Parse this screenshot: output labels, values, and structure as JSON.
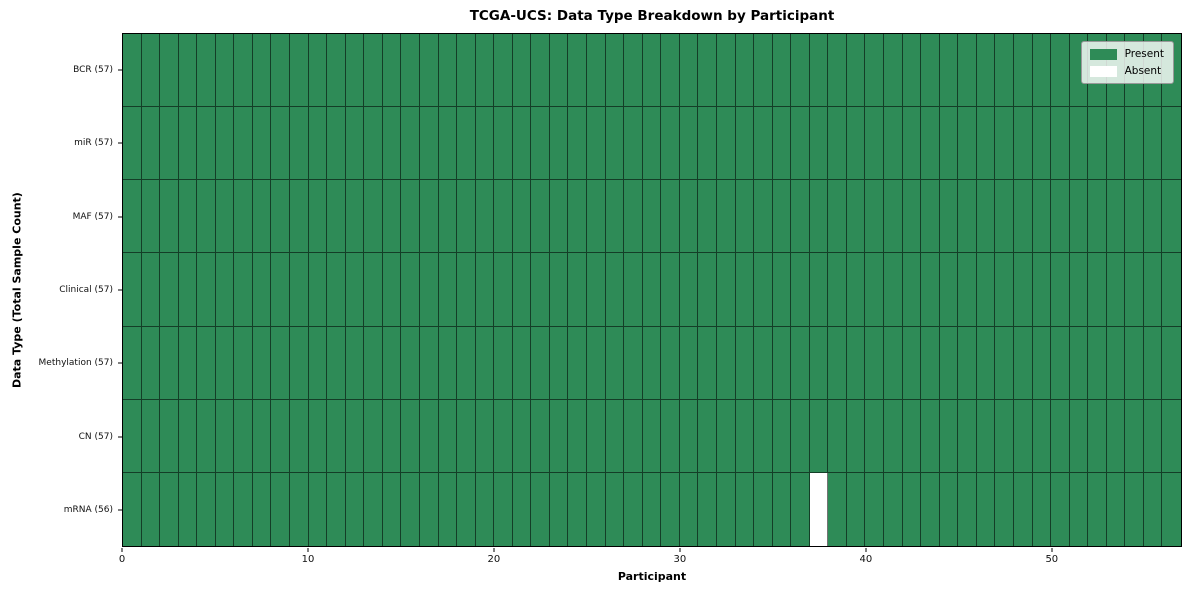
{
  "chart_data": {
    "type": "heatmap",
    "title": "TCGA-UCS: Data Type Breakdown by Participant",
    "xlabel": "Participant",
    "ylabel": "Data Type (Total Sample Count)",
    "x_ticks": [
      0,
      10,
      20,
      30,
      40,
      50
    ],
    "x_range": [
      0,
      57
    ],
    "n_participants": 57,
    "rows": [
      {
        "label": "BCR (57)",
        "data_type": "BCR",
        "count": 57,
        "absent_participants": []
      },
      {
        "label": "miR (57)",
        "data_type": "miR",
        "count": 57,
        "absent_participants": []
      },
      {
        "label": "MAF (57)",
        "data_type": "MAF",
        "count": 57,
        "absent_participants": []
      },
      {
        "label": "Clinical (57)",
        "data_type": "Clinical",
        "count": 57,
        "absent_participants": []
      },
      {
        "label": "Methylation (57)",
        "data_type": "Methylation",
        "count": 57,
        "absent_participants": []
      },
      {
        "label": "CN (57)",
        "data_type": "CN",
        "count": 57,
        "absent_participants": []
      },
      {
        "label": "mRNA (56)",
        "data_type": "mRNA",
        "count": 56,
        "absent_participants": [
          37
        ]
      }
    ],
    "legend": [
      {
        "label": "Present",
        "color": "#2E8B57"
      },
      {
        "label": "Absent",
        "color": "#FFFFFF"
      }
    ],
    "legend_position": "upper right",
    "colors": {
      "present": "#2E8B57",
      "absent": "#FFFFFF",
      "cell_edge": "rgba(0,0,0,0.55)"
    },
    "grid": "cell-borders"
  }
}
